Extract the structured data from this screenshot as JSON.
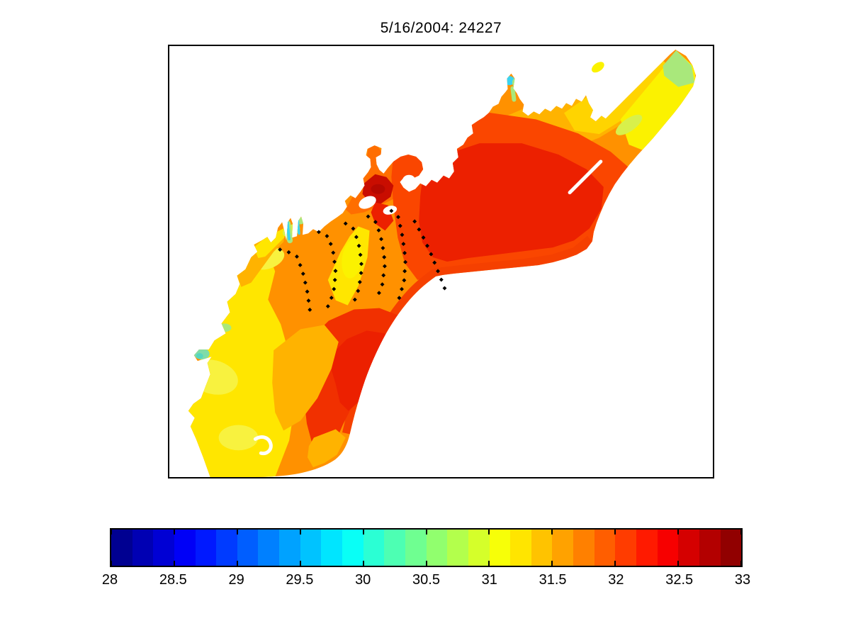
{
  "title": "5/16/2004: 24227",
  "palette": {
    "base_orange": "#FF9100",
    "orange_deep": "#FF6E00",
    "amber": "#FFB300",
    "yellow_deep": "#FFD400",
    "yellow": "#FFE600",
    "yellow_bright": "#FBF200",
    "yellow_pale": "#F8F23F",
    "yellow_green": "#D8F04B",
    "green": "#A9E87B",
    "teal": "#7FDCA8",
    "teal_deep": "#56D6C0",
    "cyan": "#3BD3F0",
    "red_orange": "#FA4600",
    "arc_red": "#F54000",
    "red": "#EC2000",
    "red_patch": "#F13000",
    "dark_red": "#C90D00",
    "dark_red_core": "#B50800",
    "land_white": "#FFFFFF",
    "frame_black": "#000000",
    "dot_black": "#000000"
  },
  "chart_data": {
    "type": "heatmap",
    "title": "5/16/2004: 24227",
    "description": "Filled-contour surface salinity map of a coastal bay rendered with a discrete jet colormap; black dotted survey-transect station lines overlaid; white areas are land / outside the model domain.",
    "colormap": "jet",
    "colorbar": {
      "orientation": "horizontal",
      "min": 28,
      "max": 33,
      "n_bands": 30,
      "ticks": [
        28,
        28.5,
        29,
        29.5,
        30,
        30.5,
        31,
        31.5,
        32,
        32.5,
        33
      ],
      "tick_labels": [
        "28",
        "28.5",
        "29",
        "29.5",
        "30",
        "30.5",
        "31",
        "31.5",
        "32",
        "32.5",
        "33"
      ]
    },
    "regions_approx_values": [
      {
        "area": "northeast channel wedge (upper right)",
        "approx_value": 31.0
      },
      {
        "area": "green tip at extreme upper-right corner",
        "approx_value": 30.5
      },
      {
        "area": "central and eastern basin (broad red mass)",
        "approx_value": 32.3
      },
      {
        "area": "dark red patch below northern inlet complex",
        "approx_value": 32.9
      },
      {
        "area": "southwestern nearshore yellow band",
        "approx_value": 31.1
      },
      {
        "area": "lower-central red patch beside concave arc",
        "approx_value": 32.4
      },
      {
        "area": "small cyan coastal inlets (north and west shores)",
        "approx_value": 29.4
      },
      {
        "area": "green blob on west shore",
        "approx_value": 30.3
      }
    ],
    "transects": {
      "dot_spacing_px": 13,
      "dot_size_px": 4.2,
      "dot_shape": "diamond",
      "lines": [
        [
          [
            157,
            289
          ],
          [
            170,
            293
          ],
          [
            181,
            299
          ],
          [
            189,
            320
          ],
          [
            195,
            345
          ],
          [
            199,
            371
          ],
          [
            200,
            382
          ]
        ],
        [
          [
            212,
            264
          ],
          [
            226,
            271
          ],
          [
            233,
            295
          ],
          [
            236,
            322
          ],
          [
            233,
            350
          ],
          [
            224,
            372
          ]
        ],
        [
          [
            250,
            252
          ],
          [
            262,
            260
          ],
          [
            270,
            287
          ],
          [
            273,
            315
          ],
          [
            269,
            344
          ],
          [
            260,
            369
          ]
        ],
        [
          [
            282,
            242
          ],
          [
            294,
            251
          ],
          [
            302,
            279
          ],
          [
            306,
            309
          ],
          [
            302,
            339
          ],
          [
            293,
            362
          ]
        ],
        [
          [
            315,
            234
          ],
          [
            325,
            243
          ],
          [
            331,
            272
          ],
          [
            335,
            303
          ],
          [
            333,
            334
          ],
          [
            326,
            358
          ]
        ],
        [
          [
            348,
            249
          ],
          [
            361,
            273
          ],
          [
            372,
            297
          ],
          [
            382,
            322
          ],
          [
            391,
            345
          ]
        ]
      ]
    }
  }
}
